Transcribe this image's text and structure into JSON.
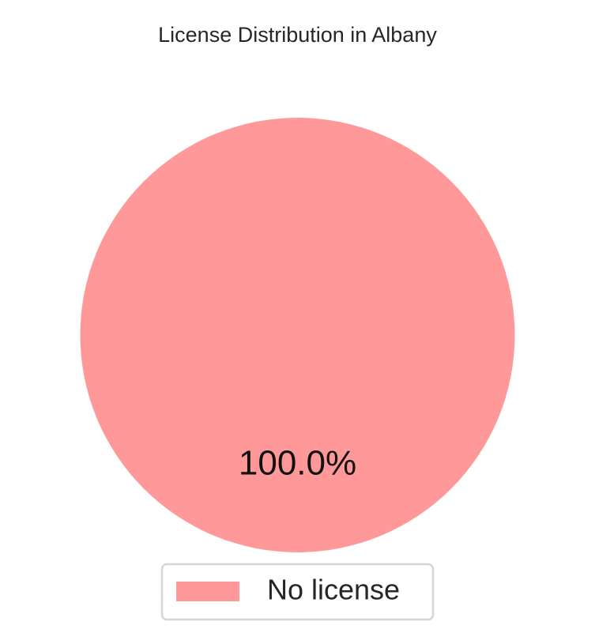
{
  "chart_data": {
    "type": "pie",
    "title": "License Distribution in Albany",
    "categories": [
      "No license"
    ],
    "values": [
      100.0
    ],
    "value_labels": [
      "100.0%"
    ],
    "colors": [
      "#ff9999"
    ],
    "legend": {
      "placement": "bottom-center",
      "entries": [
        "No license"
      ]
    }
  }
}
